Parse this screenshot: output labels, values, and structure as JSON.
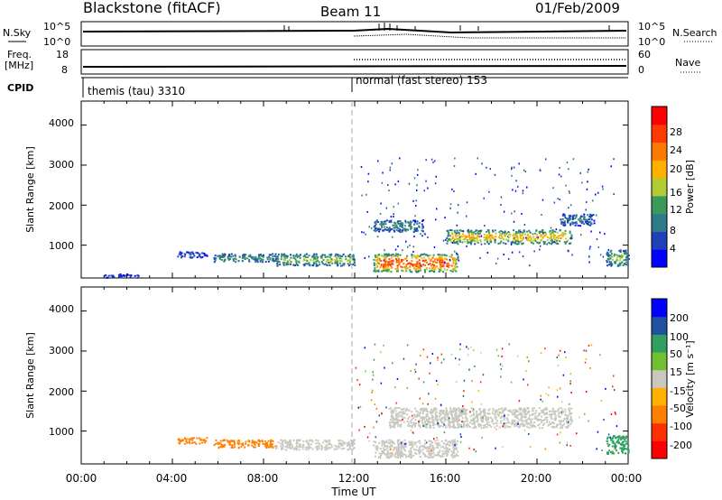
{
  "header": {
    "title": "Blackstone (fitACF)",
    "beam": "Beam 11",
    "date": "01/Feb/2009"
  },
  "sky_panel": {
    "left_label": "N.Sky",
    "right_label": "N.Search",
    "tick_top": "10^5",
    "tick_bottom": "10^0",
    "right_tick_top": "10^5",
    "right_tick_bottom": "10^0"
  },
  "freq_panel": {
    "left_label_1": "Freq.",
    "left_label_2": "[MHz]",
    "right_label": "Nave",
    "tick_top": "18",
    "tick_bottom": "8",
    "right_tick_top": "60",
    "right_tick_bottom": "0"
  },
  "cpid_panel": {
    "label": "CPID",
    "mode_1": "themis (tau) 3310",
    "mode_2": "normal (fast stereo) 153"
  },
  "power_panel": {
    "ylabel": "Slant Range [km]",
    "yticks": [
      "4000",
      "3000",
      "2000",
      "1000"
    ],
    "colorbar_label": "Power [dB]",
    "colorbar_ticks": [
      "28",
      "24",
      "20",
      "16",
      "12",
      "8",
      "4"
    ],
    "colors": [
      "#0000ff",
      "#1f40b8",
      "#2f7a8a",
      "#3a9a5a",
      "#b0cc30",
      "#ffb000",
      "#ff7a00",
      "#ff3a00",
      "#ff0000"
    ]
  },
  "velocity_panel": {
    "ylabel": "Slant Range [km]",
    "yticks": [
      "4000",
      "3000",
      "2000",
      "1000"
    ],
    "colorbar_label": "Velocity [m s⁻¹]",
    "colorbar_ticks": [
      "200",
      "100",
      "50",
      "15",
      "-15",
      "-50",
      "-100",
      "-200"
    ],
    "colors": [
      "#0000ff",
      "#2050a0",
      "#30a060",
      "#70c030",
      "#c8c8c0",
      "#ffb000",
      "#ff8000",
      "#ff3000",
      "#ff0000"
    ],
    "ground_scatter_color": "#c8c8c0"
  },
  "x_axis": {
    "label": "Time UT",
    "ticks": [
      "00:00",
      "04:00",
      "08:00",
      "12:00",
      "16:00",
      "20:00",
      "00:00"
    ]
  },
  "chart_data": {
    "type": "heatmap",
    "title": "Blackstone (fitACF)",
    "xlabel": "Time UT",
    "ylabel": "Slant Range [km]",
    "xlim_hours": [
      0,
      24
    ],
    "ylim_km": [
      180,
      4600
    ],
    "series": [
      {
        "name": "Power [dB]",
        "scatter_regions": [
          {
            "t_start": 1,
            "t_end": 2.5,
            "range_start": 200,
            "range_end": 300,
            "level": 5
          },
          {
            "t_start": 4.2,
            "t_end": 5.5,
            "range_start": 700,
            "range_end": 850,
            "level": 8
          },
          {
            "t_start": 5.8,
            "t_end": 8.5,
            "range_start": 600,
            "range_end": 800,
            "level": 14
          },
          {
            "t_start": 8.5,
            "t_end": 12,
            "range_start": 500,
            "range_end": 800,
            "level": 16
          },
          {
            "t_start": 12.8,
            "t_end": 16.5,
            "range_start": 350,
            "range_end": 800,
            "level": 26
          },
          {
            "t_start": 12.8,
            "t_end": 15,
            "range_start": 1350,
            "range_end": 1650,
            "level": 10
          },
          {
            "t_start": 16,
            "t_end": 21.5,
            "range_start": 1050,
            "range_end": 1400,
            "level": 20
          },
          {
            "t_start": 21,
            "t_end": 22.5,
            "range_start": 1500,
            "range_end": 1800,
            "level": 8
          },
          {
            "t_start": 23,
            "t_end": 24,
            "range_start": 500,
            "range_end": 900,
            "level": 14
          }
        ]
      },
      {
        "name": "Velocity [m s⁻¹]",
        "scatter_regions": [
          {
            "t_start": 4.2,
            "t_end": 5.5,
            "range_start": 700,
            "range_end": 850,
            "value": -80
          },
          {
            "t_start": 5.8,
            "t_end": 8.5,
            "range_start": 600,
            "range_end": 800,
            "value": -60
          },
          {
            "t_start": 8.5,
            "t_end": 12,
            "range_start": 550,
            "range_end": 800,
            "value": 0
          },
          {
            "t_start": 12.8,
            "t_end": 16.5,
            "range_start": 350,
            "range_end": 800,
            "value": 0
          },
          {
            "t_start": 13.5,
            "t_end": 21.5,
            "range_start": 1100,
            "range_end": 1600,
            "value": 0
          },
          {
            "t_start": 23,
            "t_end": 24,
            "range_start": 450,
            "range_end": 900,
            "value": 40
          }
        ]
      }
    ]
  }
}
